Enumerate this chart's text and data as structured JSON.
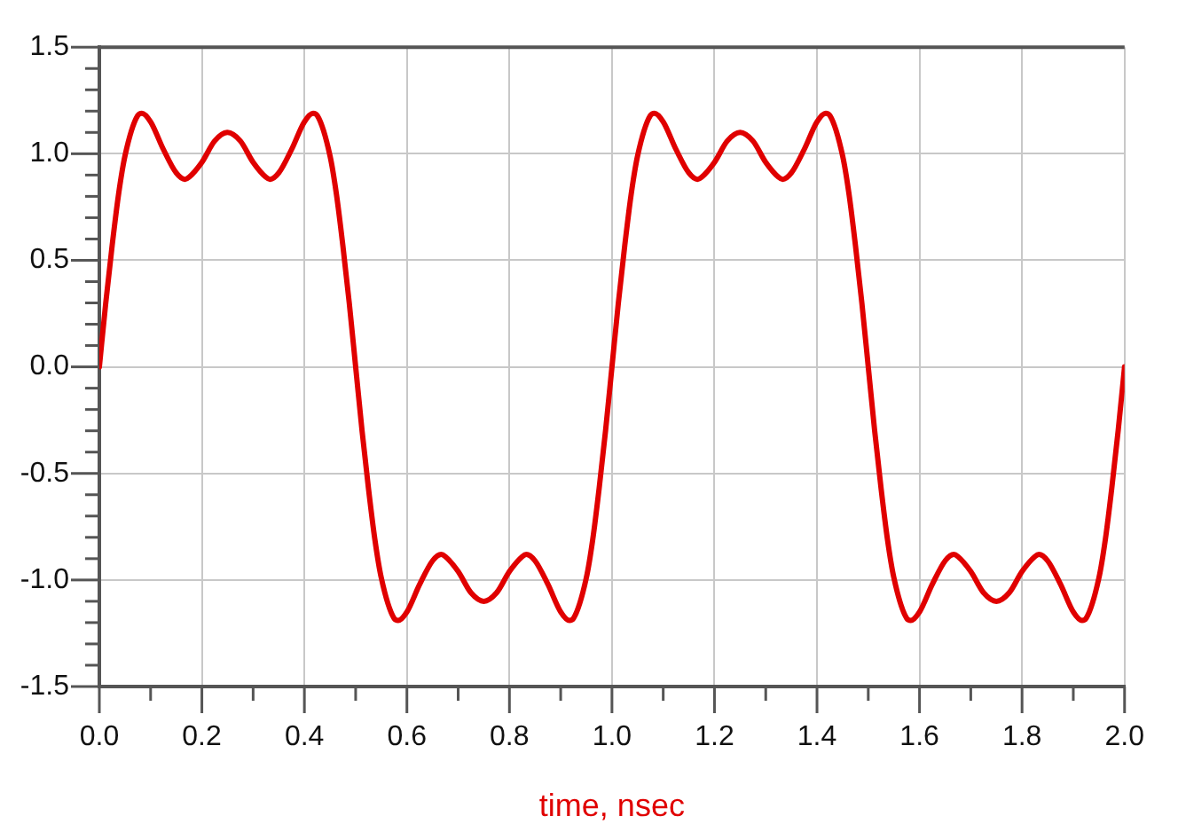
{
  "chart_data": {
    "type": "line",
    "xlabel": "time, nsec",
    "x": [
      0,
      0.0125,
      0.025,
      0.0375,
      0.05,
      0.075,
      0.083,
      0.1,
      0.125,
      0.15,
      0.167,
      0.175,
      0.2,
      0.225,
      0.25,
      0.275,
      0.3,
      0.325,
      0.333,
      0.35,
      0.375,
      0.4,
      0.417,
      0.425,
      0.45,
      0.4625,
      0.475,
      0.4875,
      0.5,
      0.5125,
      0.525,
      0.5375,
      0.55,
      0.575,
      0.583,
      0.6,
      0.625,
      0.65,
      0.667,
      0.675,
      0.7,
      0.725,
      0.75,
      0.775,
      0.8,
      0.825,
      0.833,
      0.85,
      0.875,
      0.9,
      0.917,
      0.925,
      0.95,
      0.9625,
      0.975,
      0.9875,
      1,
      1.0125,
      1.025,
      1.0375,
      1.05,
      1.075,
      1.083,
      1.1,
      1.125,
      1.15,
      1.167,
      1.175,
      1.2,
      1.225,
      1.25,
      1.275,
      1.3,
      1.325,
      1.333,
      1.35,
      1.375,
      1.4,
      1.417,
      1.425,
      1.45,
      1.4625,
      1.475,
      1.4875,
      1.5,
      1.5125,
      1.525,
      1.5375,
      1.55,
      1.575,
      1.583,
      1.6,
      1.625,
      1.65,
      1.667,
      1.675,
      1.7,
      1.725,
      1.75,
      1.775,
      1.8,
      1.825,
      1.833,
      1.85,
      1.875,
      1.9,
      1.917,
      1.925,
      1.95,
      1.9625,
      1.975,
      1.9875,
      2
    ],
    "values": [
      0,
      0.3,
      0.57,
      0.81,
      0.99,
      1.18,
      1.19,
      1.15,
      1.02,
      0.91,
      0.88,
      0.89,
      0.96,
      1.06,
      1.1,
      1.06,
      0.96,
      0.89,
      0.88,
      0.91,
      1.02,
      1.15,
      1.19,
      1.18,
      0.99,
      0.81,
      0.57,
      0.3,
      0,
      -0.3,
      -0.57,
      -0.81,
      -0.99,
      -1.18,
      -1.19,
      -1.15,
      -1.02,
      -0.91,
      -0.88,
      -0.89,
      -0.96,
      -1.06,
      -1.1,
      -1.06,
      -0.96,
      -0.89,
      -0.88,
      -0.91,
      -1.02,
      -1.15,
      -1.19,
      -1.18,
      -0.99,
      -0.81,
      -0.57,
      -0.3,
      0,
      0.3,
      0.57,
      0.81,
      0.99,
      1.18,
      1.19,
      1.15,
      1.02,
      0.91,
      0.88,
      0.89,
      0.96,
      1.06,
      1.1,
      1.06,
      0.96,
      0.89,
      0.88,
      0.91,
      1.02,
      1.15,
      1.19,
      1.18,
      0.99,
      0.81,
      0.57,
      0.3,
      0,
      -0.3,
      -0.57,
      -0.81,
      -0.99,
      -1.18,
      -1.19,
      -1.15,
      -1.02,
      -0.91,
      -0.88,
      -0.89,
      -0.96,
      -1.06,
      -1.1,
      -1.06,
      -0.96,
      -0.89,
      -0.88,
      -0.91,
      -1.02,
      -1.15,
      -1.19,
      -1.18,
      -0.99,
      -0.81,
      -0.57,
      -0.3,
      0
    ],
    "color": "#e00000",
    "xlim": [
      0,
      2
    ],
    "xticks": [
      {
        "value": 0,
        "label": "0.0"
      },
      {
        "value": 0.1,
        "label": null
      },
      0.2,
      {
        "value": 0.3,
        "label": null
      },
      0.4,
      {
        "value": 0.5,
        "label": null
      },
      0.6,
      {
        "value": 0.7,
        "label": null
      },
      0.8,
      {
        "value": 0.9,
        "label": null
      },
      {
        "value": 1,
        "label": "1.0"
      },
      {
        "value": 1.1,
        "label": null
      },
      1.2,
      {
        "value": 1.3,
        "label": null
      },
      1.4,
      {
        "value": 1.5,
        "label": null
      },
      1.6,
      {
        "value": 1.7,
        "label": null
      },
      1.8,
      {
        "value": 1.9,
        "label": null
      },
      {
        "value": 2,
        "label": "2.0"
      }
    ],
    "ylim": [
      -1.5,
      1.5
    ],
    "yticks": [
      -1.5,
      {
        "value": -1.4,
        "label": null
      },
      {
        "value": -1.3,
        "label": null
      },
      {
        "value": -1.2,
        "label": null
      },
      {
        "value": -1.1,
        "label": null
      },
      {
        "value": -1,
        "label": "-1.0"
      },
      {
        "value": -0.9,
        "label": null
      },
      {
        "value": -0.8,
        "label": null
      },
      {
        "value": -0.7,
        "label": null
      },
      {
        "value": -0.6,
        "label": null
      },
      -0.5,
      {
        "value": -0.4,
        "label": null
      },
      {
        "value": -0.3,
        "label": null
      },
      {
        "value": -0.2,
        "label": null
      },
      {
        "value": -0.1,
        "label": null
      },
      {
        "value": 0,
        "label": "0.0"
      },
      {
        "value": 0.1,
        "label": null
      },
      {
        "value": 0.2,
        "label": null
      },
      {
        "value": 0.3,
        "label": null
      },
      {
        "value": 0.4,
        "label": null
      },
      0.5,
      {
        "value": 0.6,
        "label": null
      },
      {
        "value": 0.7,
        "label": null
      },
      {
        "value": 0.8,
        "label": null
      },
      {
        "value": 0.9,
        "label": null
      },
      {
        "value": 1,
        "label": "1.0"
      },
      {
        "value": 1.1,
        "label": null
      },
      {
        "value": 1.2,
        "label": null
      },
      {
        "value": 1.3,
        "label": null
      },
      {
        "value": 1.4,
        "label": null
      },
      1.5
    ],
    "grid": true,
    "marker": "none",
    "line_style": "solid"
  }
}
